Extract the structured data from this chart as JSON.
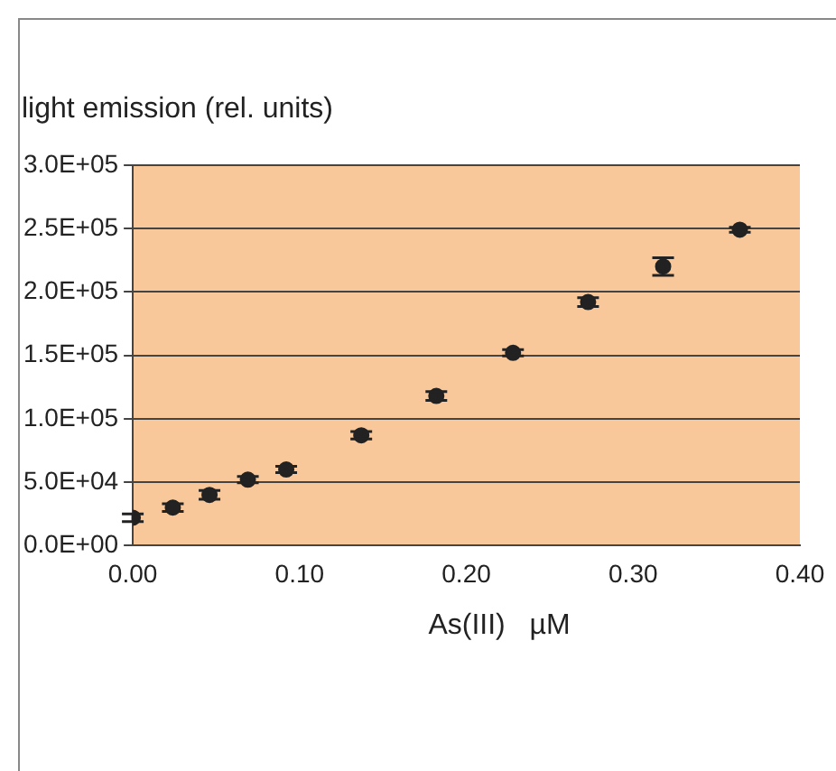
{
  "chart_data": {
    "type": "scatter",
    "ylabel": "light emission (rel. units)",
    "xlabel": "As(III)   µM",
    "x": [
      0,
      0.024,
      0.046,
      0.069,
      0.092,
      0.137,
      0.182,
      0.228,
      0.273,
      0.318,
      0.364
    ],
    "series": [
      {
        "color": "#222222",
        "values": [
          22000,
          30000,
          40000,
          52000,
          60000,
          87000,
          118000,
          152000,
          192000,
          220000,
          249000
        ],
        "errors": [
          3000,
          3000,
          3500,
          2500,
          2500,
          3000,
          3500,
          2500,
          3500,
          7000,
          2000
        ]
      }
    ],
    "xlim": [
      0,
      0.4
    ],
    "xticks": [
      {
        "value": 0,
        "label": "0.00"
      },
      {
        "value": 0.1,
        "label": "0.10"
      },
      {
        "value": 0.2,
        "label": "0.20"
      },
      {
        "value": 0.3,
        "label": "0.30"
      },
      {
        "value": 0.4,
        "label": "0.40"
      }
    ],
    "ylim": [
      0,
      300000
    ],
    "yticks": [
      {
        "value": 0,
        "label": "0.0E+00"
      },
      {
        "value": 50000,
        "label": "5.0E+04"
      },
      {
        "value": 100000,
        "label": "1.0E+05"
      },
      {
        "value": 150000,
        "label": "1.5E+05"
      },
      {
        "value": 200000,
        "label": "2.0E+05"
      },
      {
        "value": 250000,
        "label": "2.5E+05"
      },
      {
        "value": 300000,
        "label": "3.0E+05"
      }
    ],
    "grid": "y",
    "marker": "circle",
    "legend": false
  }
}
